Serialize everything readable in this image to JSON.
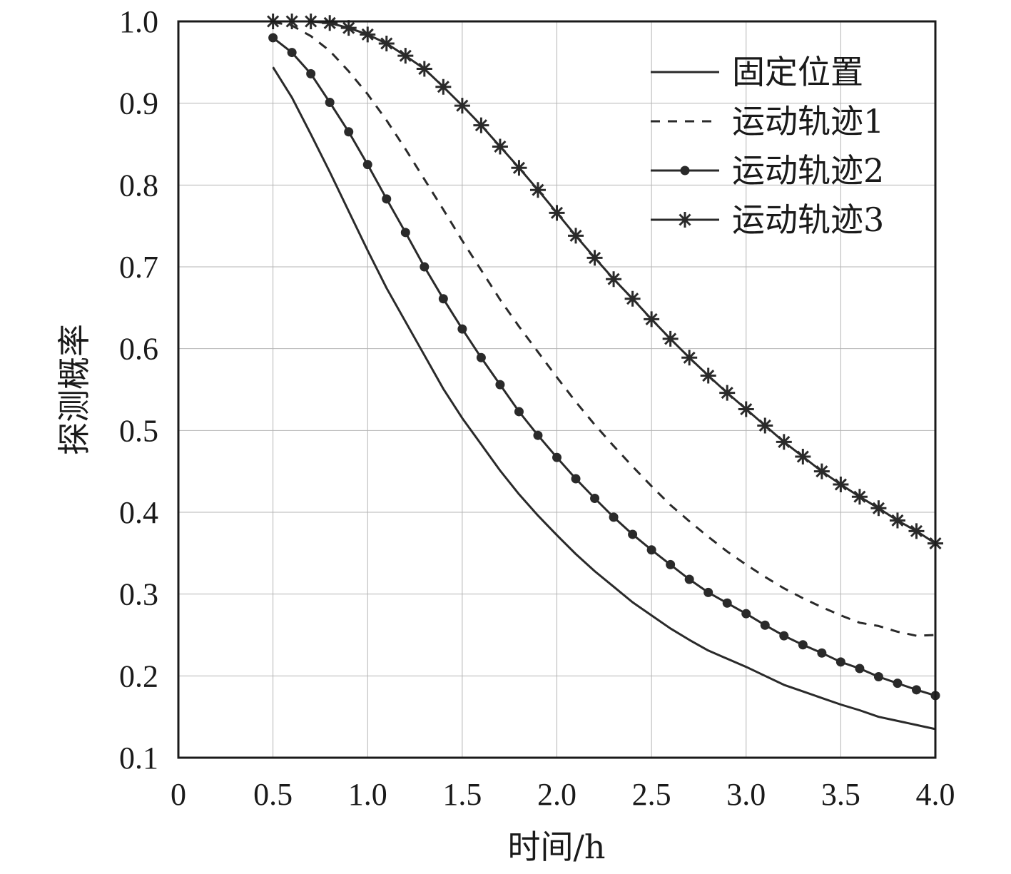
{
  "chart_data": {
    "type": "line",
    "xlabel": "时间/h",
    "ylabel": "探测概率",
    "xlim": [
      0,
      4.0
    ],
    "ylim": [
      0.1,
      1.0
    ],
    "x_ticks": [
      "0",
      "0.5",
      "1.0",
      "1.5",
      "2.0",
      "2.5",
      "3.0",
      "3.5",
      "4.0"
    ],
    "y_ticks": [
      "0.1",
      "0.2",
      "0.3",
      "0.4",
      "0.5",
      "0.6",
      "0.7",
      "0.8",
      "0.9",
      "1.0"
    ],
    "grid": true,
    "legend_position": "top-right",
    "x": [
      0.5,
      0.6,
      0.7,
      0.8,
      0.9,
      1.0,
      1.1,
      1.2,
      1.3,
      1.4,
      1.5,
      1.6,
      1.7,
      1.8,
      1.9,
      2.0,
      2.1,
      2.2,
      2.3,
      2.4,
      2.5,
      2.6,
      2.7,
      2.8,
      2.9,
      3.0,
      3.1,
      3.2,
      3.3,
      3.4,
      3.5,
      3.6,
      3.7,
      3.8,
      3.9,
      4.0
    ],
    "series": [
      {
        "name": "固定位置",
        "style": "solid",
        "marker": "none",
        "values": [
          0.944,
          0.907,
          0.862,
          0.816,
          0.768,
          0.72,
          0.674,
          0.633,
          0.592,
          0.551,
          0.515,
          0.483,
          0.451,
          0.422,
          0.396,
          0.372,
          0.349,
          0.328,
          0.309,
          0.29,
          0.274,
          0.258,
          0.244,
          0.231,
          0.221,
          0.211,
          0.2,
          0.189,
          0.181,
          0.173,
          0.165,
          0.158,
          0.15,
          0.145,
          0.14,
          0.135
        ]
      },
      {
        "name": "运动轨迹1",
        "style": "dashed",
        "marker": "none",
        "values": [
          0.999,
          0.995,
          0.982,
          0.964,
          0.939,
          0.911,
          0.879,
          0.844,
          0.807,
          0.77,
          0.732,
          0.696,
          0.66,
          0.627,
          0.596,
          0.565,
          0.535,
          0.507,
          0.481,
          0.456,
          0.432,
          0.409,
          0.389,
          0.37,
          0.352,
          0.336,
          0.321,
          0.307,
          0.295,
          0.284,
          0.274,
          0.265,
          0.261,
          0.254,
          0.249,
          0.25
        ]
      },
      {
        "name": "运动轨迹2",
        "style": "solid",
        "marker": "circle",
        "values": [
          0.98,
          0.962,
          0.936,
          0.901,
          0.865,
          0.825,
          0.783,
          0.742,
          0.7,
          0.661,
          0.624,
          0.589,
          0.556,
          0.523,
          0.494,
          0.467,
          0.441,
          0.417,
          0.394,
          0.373,
          0.354,
          0.336,
          0.318,
          0.302,
          0.289,
          0.276,
          0.262,
          0.249,
          0.238,
          0.228,
          0.217,
          0.209,
          0.199,
          0.191,
          0.183,
          0.176
        ]
      },
      {
        "name": "运动轨迹3",
        "style": "solid",
        "marker": "star",
        "values": [
          1.0,
          1.0,
          1.0,
          0.998,
          0.992,
          0.984,
          0.973,
          0.958,
          0.942,
          0.92,
          0.897,
          0.873,
          0.847,
          0.821,
          0.794,
          0.766,
          0.738,
          0.711,
          0.685,
          0.661,
          0.636,
          0.612,
          0.589,
          0.567,
          0.546,
          0.526,
          0.506,
          0.486,
          0.468,
          0.45,
          0.434,
          0.419,
          0.405,
          0.39,
          0.377,
          0.362
        ]
      }
    ]
  }
}
